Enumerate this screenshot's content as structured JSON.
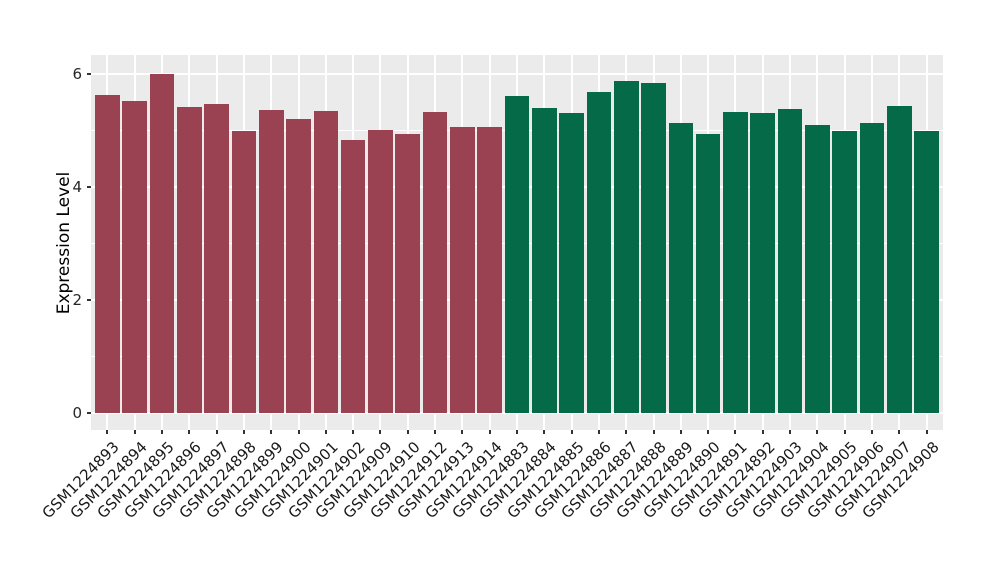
{
  "figure": {
    "title": "",
    "colors": {
      "page_background": "#FFFFFF",
      "panel_background": "#EBEBEB",
      "gridline": "#FFFFFF",
      "tick_mark": "#333333",
      "axis_text": "#262626",
      "group1_fill": "#9B4252",
      "group2_fill": "#046A47"
    }
  },
  "chart_data": {
    "type": "bar",
    "title": "",
    "xlabel": "",
    "ylabel": "Expression Level",
    "ylim": [
      -0.3,
      6.33
    ],
    "yticks": [
      0,
      2,
      4,
      6
    ],
    "yminor": [
      1,
      3,
      5
    ],
    "grid": true,
    "legend": false,
    "bar_width_frac": 0.9,
    "groups": [
      {
        "name": "group-1",
        "color": "#9B4252",
        "bars": [
          {
            "label": "GSM1224893",
            "value": 5.62
          },
          {
            "label": "GSM1224894",
            "value": 5.51
          },
          {
            "label": "GSM1224895",
            "value": 5.99
          },
          {
            "label": "GSM1224896",
            "value": 5.41
          },
          {
            "label": "GSM1224897",
            "value": 5.47
          },
          {
            "label": "GSM1224898",
            "value": 4.98
          },
          {
            "label": "GSM1224899",
            "value": 5.35
          },
          {
            "label": "GSM1224900",
            "value": 5.2
          },
          {
            "label": "GSM1224901",
            "value": 5.34
          },
          {
            "label": "GSM1224902",
            "value": 4.82
          },
          {
            "label": "GSM1224909",
            "value": 5.01
          },
          {
            "label": "GSM1224910",
            "value": 4.94
          },
          {
            "label": "GSM1224912",
            "value": 5.33
          },
          {
            "label": "GSM1224913",
            "value": 5.05
          },
          {
            "label": "GSM1224914",
            "value": 5.06
          }
        ]
      },
      {
        "name": "group-2",
        "color": "#046A47",
        "bars": [
          {
            "label": "GSM1224883",
            "value": 5.61
          },
          {
            "label": "GSM1224884",
            "value": 5.4
          },
          {
            "label": "GSM1224885",
            "value": 5.31
          },
          {
            "label": "GSM1224886",
            "value": 5.68
          },
          {
            "label": "GSM1224887",
            "value": 5.87
          },
          {
            "label": "GSM1224888",
            "value": 5.84
          },
          {
            "label": "GSM1224889",
            "value": 5.12
          },
          {
            "label": "GSM1224890",
            "value": 4.93
          },
          {
            "label": "GSM1224891",
            "value": 5.33
          },
          {
            "label": "GSM1224892",
            "value": 5.31
          },
          {
            "label": "GSM1224903",
            "value": 5.37
          },
          {
            "label": "GSM1224904",
            "value": 5.1
          },
          {
            "label": "GSM1224905",
            "value": 4.98
          },
          {
            "label": "GSM1224906",
            "value": 5.13
          },
          {
            "label": "GSM1224907",
            "value": 5.43
          },
          {
            "label": "GSM1224908",
            "value": 4.99
          }
        ]
      }
    ]
  }
}
